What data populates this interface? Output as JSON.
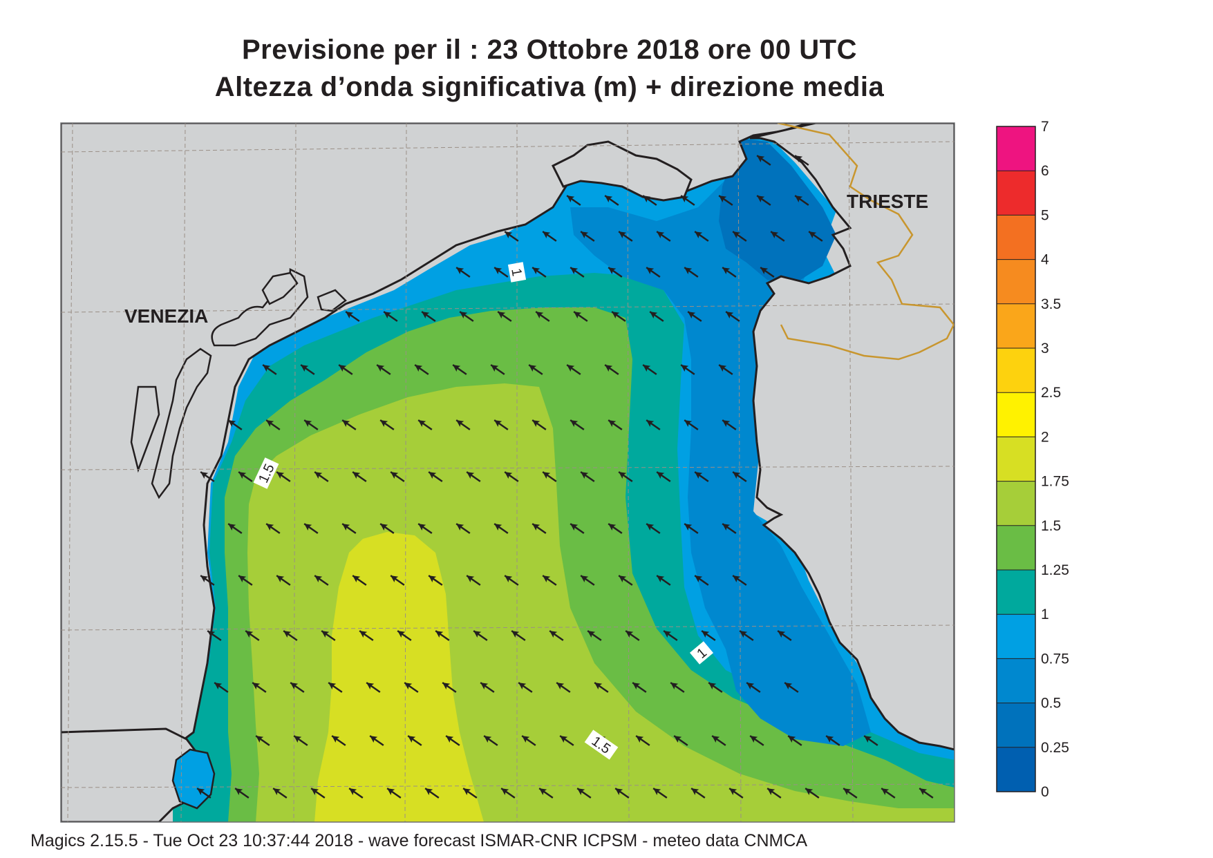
{
  "title": {
    "line1": "Previsione per il  :  23  Ottobre  2018   ore 00 UTC",
    "line2": "Altezza d’onda significativa (m) + direzione media"
  },
  "places": {
    "venezia": "VENEZIA",
    "trieste": "TRIESTE"
  },
  "contour_labels": {
    "c1_north": "1",
    "c15_west": "1.5",
    "c1_east": "1",
    "c15_south": "1.5"
  },
  "colorbar": {
    "ticks": [
      "7",
      "6",
      "5",
      "4",
      "3.5",
      "3",
      "2.5",
      "2",
      "1.75",
      "1.5",
      "1.25",
      "1",
      "0.75",
      "0.5",
      "0.25",
      "0"
    ],
    "colors": [
      "#ee1480",
      "#ed2b2c",
      "#f37021",
      "#f68b1f",
      "#faa61a",
      "#fdd20e",
      "#fff200",
      "#d7df23",
      "#a6ce39",
      "#6abd45",
      "#00a99d",
      "#00a0e3",
      "#0088cf",
      "#0072bc",
      "#005fb0"
    ]
  },
  "wave_direction": "SW",
  "colors": {
    "land": "#d0d2d3",
    "border": "#c8962e",
    "arrow": "#231f20"
  },
  "footer": "Magics 2.15.5 - Tue Oct 23 10:37:44 2018 - wave forecast  ISMAR-CNR  ICPSM - meteo data   CNMCA"
}
